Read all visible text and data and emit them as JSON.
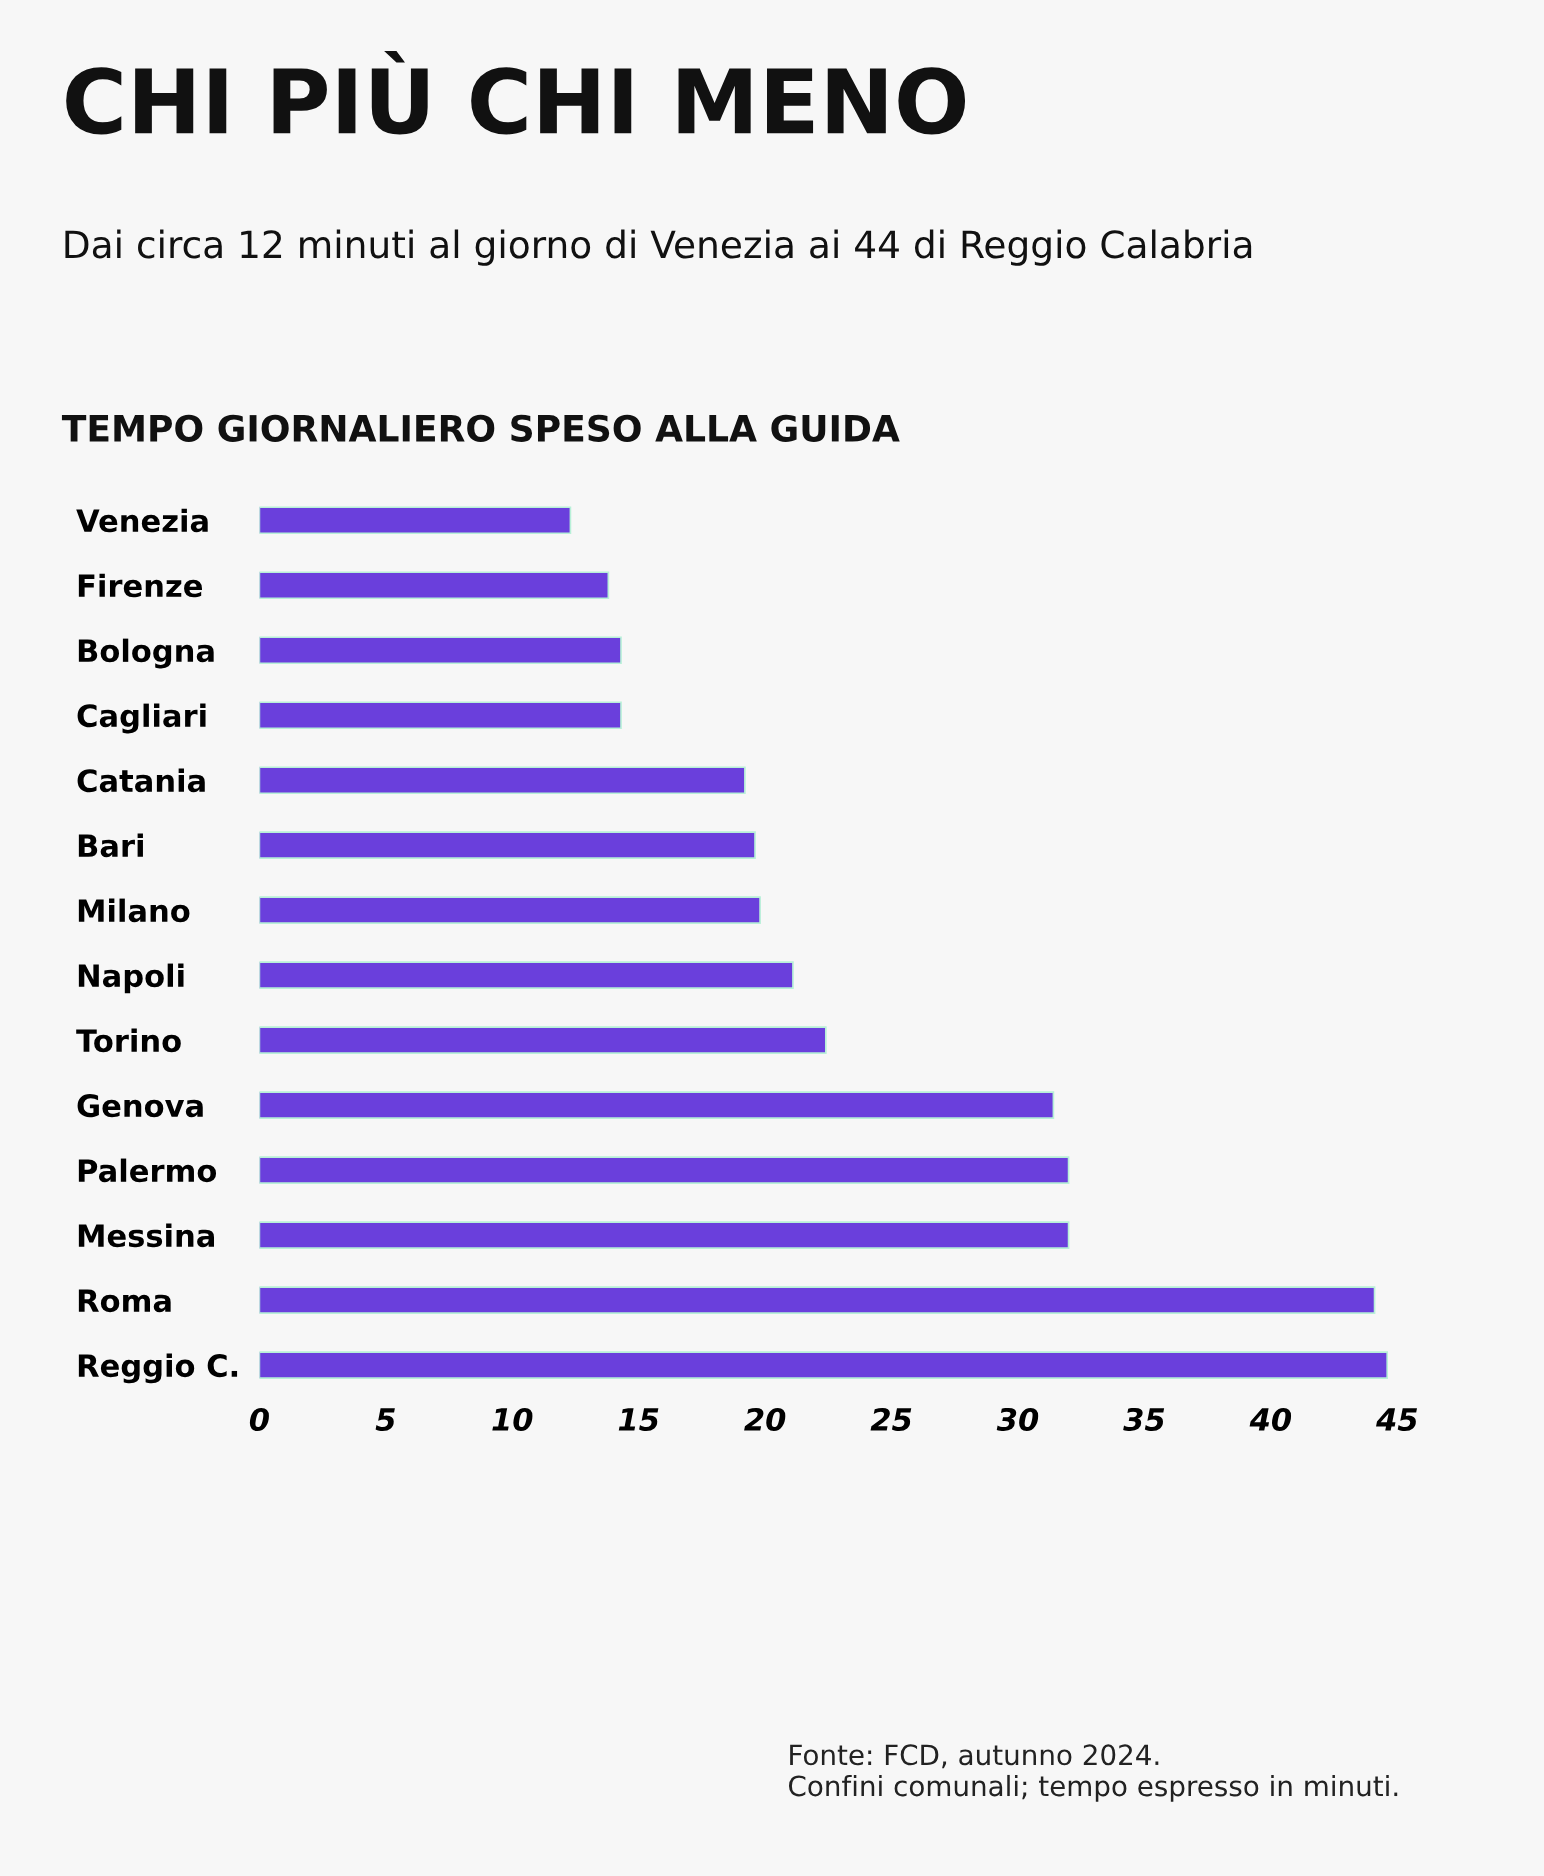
{
  "chart_data": {
    "type": "bar",
    "orientation": "horizontal",
    "title": "CHI PIÙ CHI MENO",
    "subtitle": "Dai circa 12 minuti al giorno di Venezia ai 44 di Reggio Calabria",
    "xlabel": "TEMPO GIORNALIERO SPESO ALLA GUIDA",
    "categories": [
      "Venezia",
      "Firenze",
      "Bologna",
      "Cagliari",
      "Catania",
      "Bari",
      "Milano",
      "Napoli",
      "Torino",
      "Genova",
      "Palermo",
      "Messina",
      "Roma",
      "Reggio C."
    ],
    "values": [
      12.3,
      13.8,
      14.3,
      14.3,
      19.2,
      19.6,
      19.8,
      21.1,
      22.4,
      31.4,
      32.0,
      32.0,
      44.1,
      44.6
    ],
    "color": "#6a3fdc",
    "xlim": [
      0,
      45
    ],
    "xticks": [
      0,
      5,
      10,
      15,
      20,
      25,
      30,
      35,
      40,
      45
    ],
    "grid": false,
    "legend": false,
    "annotations": [
      "Fonte: FCD, autunno 2024.\nConfini comunali; tempo espresso in minuti."
    ]
  }
}
